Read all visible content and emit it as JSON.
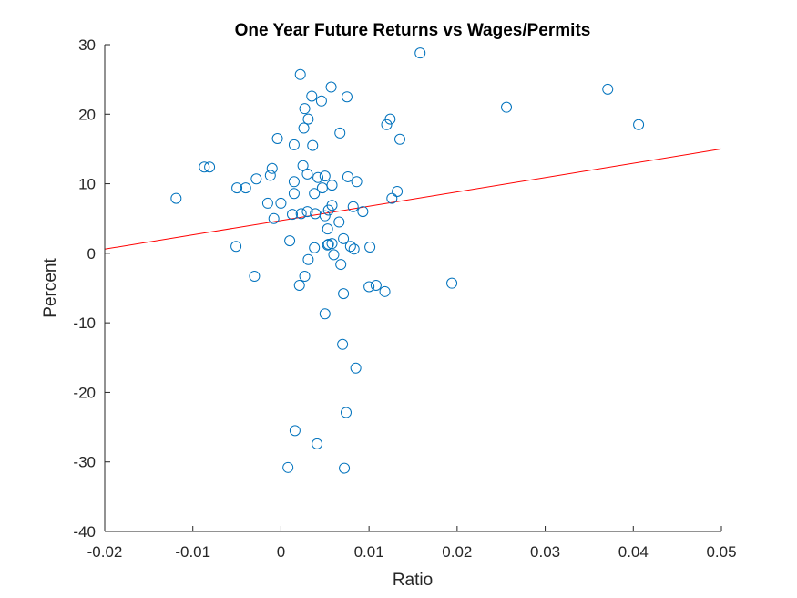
{
  "chart_data": {
    "type": "scatter",
    "title": "One Year Future Returns vs Wages/Permits",
    "xlabel": "Ratio",
    "ylabel": "Percent",
    "xlim": [
      -0.02,
      0.05
    ],
    "ylim": [
      -40,
      30
    ],
    "xticks": [
      -0.02,
      -0.01,
      0,
      0.01,
      0.02,
      0.03,
      0.04,
      0.05
    ],
    "xtick_labels": [
      "-0.02",
      "-0.01",
      "0",
      "0.01",
      "0.02",
      "0.03",
      "0.04",
      "0.05"
    ],
    "yticks": [
      -40,
      -30,
      -20,
      -10,
      0,
      10,
      20,
      30
    ],
    "ytick_labels": [
      "-40",
      "-30",
      "-20",
      "-10",
      "0",
      "10",
      "20",
      "30"
    ],
    "grid": false,
    "marker_color": "#0072bd",
    "fit_line_color": "#ff0000",
    "fit_line": {
      "x": [
        -0.02,
        0.05
      ],
      "y": [
        0.6,
        15.0
      ]
    },
    "points": [
      [
        0.0022,
        25.7
      ],
      [
        0.0158,
        28.8
      ],
      [
        0.0057,
        23.9
      ],
      [
        0.0035,
        22.6
      ],
      [
        0.0075,
        22.5
      ],
      [
        0.0046,
        21.9
      ],
      [
        0.0027,
        20.8
      ],
      [
        0.0031,
        19.3
      ],
      [
        0.0124,
        19.3
      ],
      [
        0.012,
        18.5
      ],
      [
        0.0026,
        18.0
      ],
      [
        0.0067,
        17.3
      ],
      [
        0.0135,
        16.4
      ],
      [
        -0.0004,
        16.5
      ],
      [
        0.0015,
        15.6
      ],
      [
        0.0036,
        15.5
      ],
      [
        0.0256,
        21.0
      ],
      [
        0.0371,
        23.6
      ],
      [
        0.0406,
        18.5
      ],
      [
        -0.0087,
        12.4
      ],
      [
        -0.0081,
        12.4
      ],
      [
        -0.001,
        12.2
      ],
      [
        0.0025,
        12.6
      ],
      [
        0.003,
        11.4
      ],
      [
        -0.0012,
        11.2
      ],
      [
        -0.0028,
        10.7
      ],
      [
        0.0042,
        10.9
      ],
      [
        0.005,
        11.1
      ],
      [
        0.0076,
        11.0
      ],
      [
        0.0086,
        10.3
      ],
      [
        0.0015,
        10.3
      ],
      [
        0.0058,
        9.8
      ],
      [
        0.0047,
        9.4
      ],
      [
        -0.005,
        9.4
      ],
      [
        -0.004,
        9.4
      ],
      [
        0.0038,
        8.6
      ],
      [
        0.0015,
        8.6
      ],
      [
        0.0132,
        8.9
      ],
      [
        0.0126,
        7.9
      ],
      [
        -0.0119,
        7.9
      ],
      [
        -0.0015,
        7.2
      ],
      [
        0.0,
        7.2
      ],
      [
        0.0058,
        6.9
      ],
      [
        0.0082,
        6.7
      ],
      [
        0.0054,
        6.2
      ],
      [
        0.003,
        6.0
      ],
      [
        0.0093,
        6.0
      ],
      [
        0.0013,
        5.6
      ],
      [
        0.0023,
        5.7
      ],
      [
        0.0039,
        5.7
      ],
      [
        0.005,
        5.4
      ],
      [
        -0.0008,
        5.0
      ],
      [
        0.0066,
        4.5
      ],
      [
        0.0053,
        3.5
      ],
      [
        0.0071,
        2.1
      ],
      [
        0.001,
        1.8
      ],
      [
        0.0054,
        1.3
      ],
      [
        0.0058,
        1.4
      ],
      [
        0.0053,
        1.2
      ],
      [
        0.0038,
        0.8
      ],
      [
        0.0079,
        1.0
      ],
      [
        0.0083,
        0.6
      ],
      [
        0.0101,
        0.9
      ],
      [
        -0.0051,
        1.0
      ],
      [
        0.006,
        -0.2
      ],
      [
        0.0031,
        -0.9
      ],
      [
        0.0068,
        -1.6
      ],
      [
        -0.003,
        -3.3
      ],
      [
        0.0027,
        -3.3
      ],
      [
        0.0021,
        -4.6
      ],
      [
        0.01,
        -4.8
      ],
      [
        0.0108,
        -4.6
      ],
      [
        0.0118,
        -5.5
      ],
      [
        0.0071,
        -5.8
      ],
      [
        0.0194,
        -4.3
      ],
      [
        0.005,
        -8.7
      ],
      [
        0.007,
        -13.1
      ],
      [
        0.0085,
        -16.5
      ],
      [
        0.0074,
        -22.9
      ],
      [
        0.0016,
        -25.5
      ],
      [
        0.0041,
        -27.4
      ],
      [
        0.0008,
        -30.8
      ],
      [
        0.0072,
        -30.9
      ]
    ]
  }
}
